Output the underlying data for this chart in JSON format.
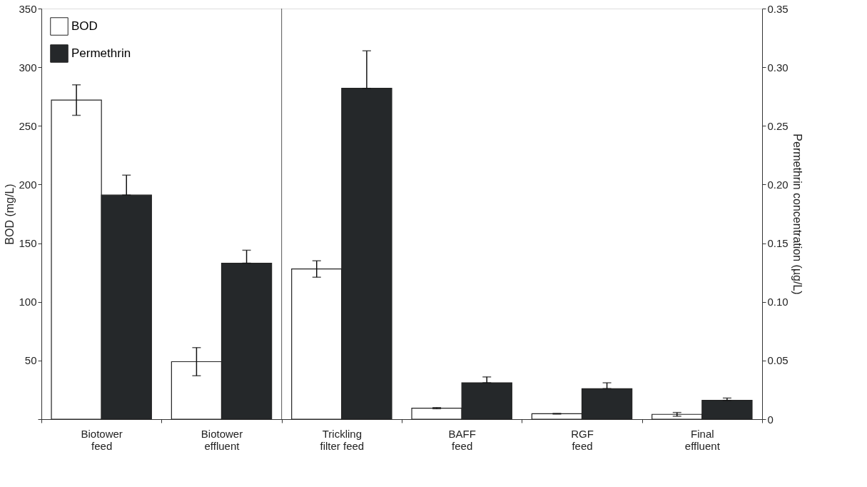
{
  "chart_data": {
    "type": "bar",
    "categories": [
      "Biotower\nfeed",
      "Biotower\neffluent",
      "Trickling\nfilter feed",
      "BAFF\nfeed",
      "RGF\nfeed",
      "Final\neffluent"
    ],
    "ylabel": "BOD (mg/L)",
    "y2label": "Permethrin concentration (µg/L)",
    "series": [
      {
        "name": "BOD",
        "color": "#ffffff",
        "values": [
          272,
          49,
          128,
          9.4,
          4.6,
          4.1
        ],
        "errors": [
          13,
          12,
          7,
          0.5,
          0.3,
          1.6
        ]
      },
      {
        "name": "Permethrin",
        "color": "#25282a",
        "axis": "y2",
        "values": [
          0.191,
          0.133,
          0.282,
          0.031,
          0.026,
          0.016
        ],
        "errors": [
          [
            0.191,
            0.208
          ],
          [
            0.133,
            0.144
          ],
          [
            0.282,
            0.314
          ],
          [
            0.031,
            0.036
          ],
          [
            0.026,
            0.031
          ],
          [
            0.016,
            0.018
          ]
        ]
      }
    ],
    "ylim": [
      0,
      350
    ],
    "yticks": [
      {
        "value": 0,
        "label": null
      },
      50,
      100,
      150,
      200,
      250,
      300,
      350
    ],
    "y2lim": [
      0,
      0.35
    ],
    "y2ticks": [
      0,
      0.05,
      {
        "value": 0.1,
        "label": "0.10"
      },
      0.15,
      {
        "value": 0.2,
        "label": "0.20"
      },
      0.25,
      {
        "value": 0.3,
        "label": "0.30"
      },
      0.35
    ],
    "legend": "top left",
    "grid": false
  }
}
